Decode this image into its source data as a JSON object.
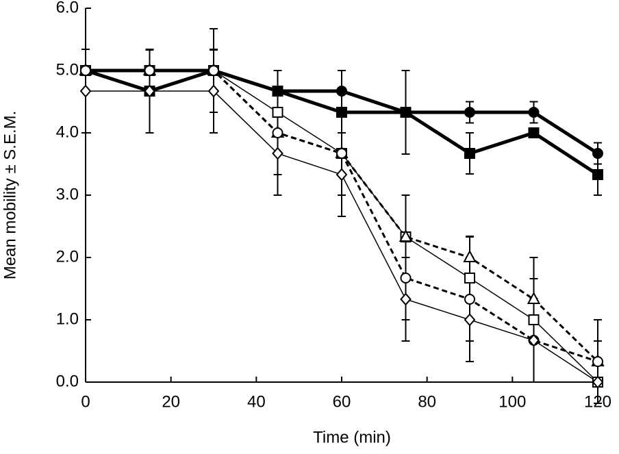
{
  "chart_data": {
    "type": "line",
    "xlabel": "Time (min)",
    "ylabel": "Mean mobility ± S.E.M.",
    "x": [
      0,
      15,
      30,
      45,
      60,
      75,
      90,
      105,
      120
    ],
    "xlim": [
      0,
      120
    ],
    "xticks": [
      0,
      20,
      40,
      60,
      80,
      100,
      120
    ],
    "ylim": [
      0,
      6
    ],
    "yticks": [
      {
        "value": 0,
        "label": "0.0"
      },
      {
        "value": 1,
        "label": "1.0"
      },
      {
        "value": 2,
        "label": "2.0"
      },
      {
        "value": 3,
        "label": "3.0"
      },
      {
        "value": 4,
        "label": "4.0"
      },
      {
        "value": 5,
        "label": "5.0"
      },
      {
        "value": 6,
        "label": "6.0"
      }
    ],
    "grid": false,
    "series": [
      {
        "color": "#000000",
        "marker": "circle",
        "filled": true,
        "line_width": 5,
        "dashed": false,
        "values": [
          5.0,
          5.0,
          5.0,
          4.67,
          4.67,
          4.33,
          4.33,
          4.33,
          3.67
        ],
        "errors": [
          0,
          0.33,
          0.33,
          0.33,
          0.33,
          0.67,
          0.17,
          0.17,
          0.17
        ]
      },
      {
        "color": "#000000",
        "marker": "square",
        "filled": true,
        "line_width": 5,
        "dashed": false,
        "values": [
          5.0,
          4.67,
          5.0,
          4.67,
          4.33,
          4.33,
          3.67,
          4.0,
          3.33
        ],
        "errors": [
          0,
          0.67,
          0.67,
          0.33,
          0.67,
          0.67,
          0.33,
          0,
          0.33
        ]
      },
      {
        "color": "#000000",
        "marker": "square",
        "filled": false,
        "line_width": 1.5,
        "dashed": false,
        "values": [
          5.0,
          5.0,
          5.0,
          4.33,
          3.67,
          2.33,
          1.67,
          1.0,
          0.0
        ],
        "errors": [
          0,
          0,
          0,
          0.33,
          0.67,
          0.67,
          0.67,
          1.0,
          0
        ]
      },
      {
        "color": "#000000",
        "marker": "triangle",
        "filled": false,
        "line_width": 3,
        "dashed": true,
        "values": [
          5.0,
          5.0,
          5.0,
          4.0,
          3.67,
          2.33,
          2.0,
          1.33,
          0.33
        ],
        "errors": [
          0,
          0,
          0,
          0.67,
          0.67,
          0.67,
          0.33,
          0.33,
          0.33
        ]
      },
      {
        "color": "#000000",
        "marker": "circle",
        "filled": false,
        "line_width": 3,
        "dashed": true,
        "values": [
          5.0,
          5.0,
          5.0,
          4.0,
          3.67,
          1.67,
          1.33,
          0.67,
          0.33
        ],
        "errors": [
          0,
          0,
          0,
          0.67,
          0.67,
          0.67,
          0.67,
          0.67,
          0.67
        ]
      },
      {
        "color": "#000000",
        "marker": "diamond",
        "filled": false,
        "line_width": 1.5,
        "dashed": false,
        "values": [
          4.67,
          4.67,
          4.67,
          3.67,
          3.33,
          1.33,
          1.0,
          0.67,
          0.0
        ],
        "errors": [
          0.67,
          0.67,
          0.67,
          0.67,
          0.67,
          0.67,
          0.67,
          0.67,
          0
        ]
      }
    ]
  }
}
